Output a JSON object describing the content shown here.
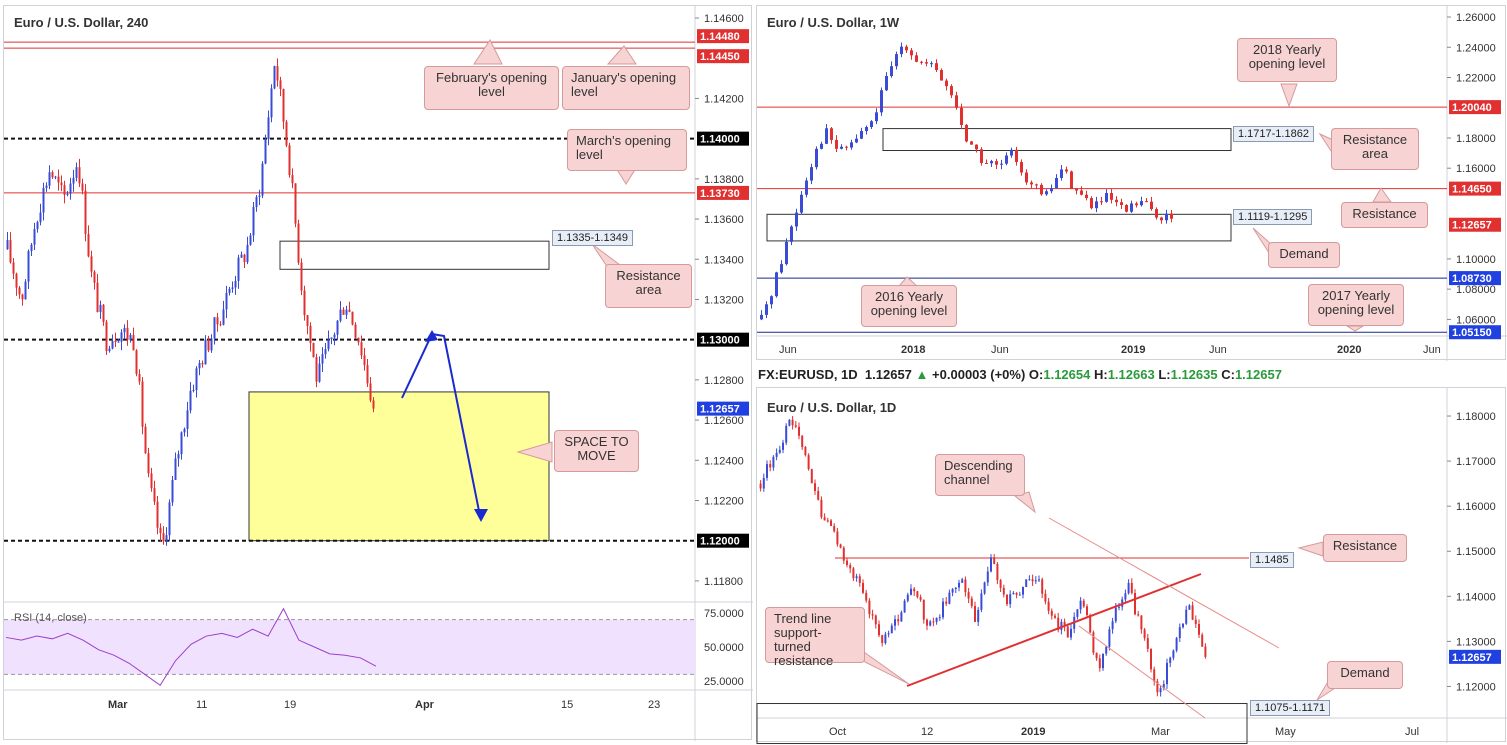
{
  "colors": {
    "up": "#3a4cd6",
    "down": "#e03030",
    "resistance_line": "#e03030",
    "support_tag": "#2040e0",
    "arrow": "#1a2ad0",
    "zone": "#ffff9a",
    "rsi_band": "#f0e2ff",
    "rsi_line": "#9b3fc9",
    "callout": "#f8d3d3"
  },
  "panel_4h": {
    "title": "Euro / U.S. Dollar, 240",
    "price_ticks": [
      "1.14600",
      "1.14200",
      "1.13800",
      "1.13600",
      "1.13400",
      "1.13200",
      "1.12800",
      "1.12600",
      "1.12400",
      "1.12200",
      "1.11800"
    ],
    "tags": [
      {
        "text": "1.14480",
        "color": "#e03030"
      },
      {
        "text": "1.14450",
        "color": "#e03030"
      },
      {
        "text": "1.14000",
        "color": "#000000"
      },
      {
        "text": "1.13730",
        "color": "#e03030"
      },
      {
        "text": "1.13000",
        "color": "#000000"
      },
      {
        "text": "1.12657",
        "color": "#2040e0"
      },
      {
        "text": "1.12000",
        "color": "#000000"
      }
    ],
    "zone_label": "1.1335-1.1349",
    "callouts": {
      "feb": "February's opening level",
      "jan": "January's opening level",
      "mar": "March's opening level",
      "res": "Resistance area",
      "space": "SPACE TO MOVE"
    },
    "x_ticks": [
      "Mar",
      "11",
      "19",
      "Apr",
      "15",
      "23"
    ],
    "rsi": {
      "label": "RSI (14, close)",
      "ticks": [
        "75.0000",
        "50.0000",
        "25.0000"
      ]
    }
  },
  "panel_w": {
    "title": "Euro / U.S. Dollar, 1W",
    "price_ticks": [
      "1.26000",
      "1.24000",
      "1.22000",
      "1.18000",
      "1.16000",
      "1.10000",
      "1.08000",
      "1.06000"
    ],
    "tags": [
      {
        "text": "1.20040",
        "color": "#e03030"
      },
      {
        "text": "1.14650",
        "color": "#e03030"
      },
      {
        "text": "1.12657",
        "color": "#e03030"
      },
      {
        "text": "1.08730",
        "color": "#2040e0"
      },
      {
        "text": "1.05150",
        "color": "#2040e0"
      }
    ],
    "box_labels": [
      "1.1717-1.1862",
      "1.1119-1.1295"
    ],
    "callouts": {
      "y2018": "2018 Yearly opening level",
      "res_area": "Resistance area",
      "res": "Resistance",
      "demand": "Demand",
      "y2016": "2016 Yearly opening level",
      "y2017": "2017 Yearly opening level"
    },
    "x_ticks": [
      "Jun",
      "2018",
      "Jun",
      "2019",
      "Jun",
      "2020",
      "Jun"
    ]
  },
  "ohlc": {
    "symbol": "FX:EURUSD, 1D",
    "last": "1.12657",
    "change": "+0.00003 (+0%)",
    "o_label": "O:",
    "o": "1.12654",
    "h_label": "H:",
    "h": "1.12663",
    "l_label": "L:",
    "l": "1.12635",
    "c_label": "C:",
    "c": "1.12657"
  },
  "panel_d": {
    "title": "Euro / U.S. Dollar, 1D",
    "price_ticks": [
      "1.18000",
      "1.17000",
      "1.16000",
      "1.15000",
      "1.14000",
      "1.13000",
      "1.12000"
    ],
    "tags": [
      {
        "text": "1.12657",
        "color": "#2040e0"
      }
    ],
    "box_labels": [
      "1.1485",
      "1.1075-1.1171"
    ],
    "callouts": {
      "desc": "Descending channel",
      "res": "Resistance",
      "trend": "Trend line support-turned resistance",
      "demand": "Demand"
    },
    "x_ticks": [
      "Oct",
      "12",
      "2019",
      "Mar",
      "May",
      "Jul"
    ]
  },
  "chart_data": [
    {
      "type": "candlestick",
      "title": "Euro / U.S. Dollar, 240",
      "ylim": [
        1.117,
        1.1462
      ],
      "levels": [
        {
          "value": 1.1448,
          "label": "February's opening level"
        },
        {
          "value": 1.1445,
          "label": "January's opening level"
        },
        {
          "value": 1.14
        },
        {
          "value": 1.1373,
          "label": "March's opening level"
        },
        {
          "value": 1.13
        },
        {
          "value": 1.12
        }
      ],
      "zones": [
        {
          "from": 1.1335,
          "to": 1.1349,
          "label": "Resistance area"
        },
        {
          "from": 1.12,
          "to": 1.1274,
          "label": "SPACE TO MOVE"
        }
      ],
      "last_price": 1.12657,
      "close_path": [
        1.1345,
        1.132,
        1.136,
        1.1385,
        1.137,
        1.139,
        1.133,
        1.13,
        1.1305,
        1.13,
        1.123,
        1.1195,
        1.124,
        1.1275,
        1.1295,
        1.131,
        1.133,
        1.1345,
        1.138,
        1.144,
        1.139,
        1.132,
        1.128,
        1.13,
        1.132,
        1.13,
        1.1266
      ],
      "rsi": {
        "ylim": [
          20,
          80
        ],
        "values": [
          57,
          55,
          58,
          56,
          60,
          55,
          48,
          44,
          38,
          30,
          22,
          40,
          52,
          58,
          60,
          57,
          63,
          58,
          78,
          55,
          50,
          45,
          44,
          42,
          36
        ]
      }
    },
    {
      "type": "candlestick",
      "title": "Euro / U.S. Dollar, 1W",
      "ylim": [
        1.049,
        1.262
      ],
      "levels": [
        {
          "value": 1.2004,
          "label": "2018 Yearly opening level"
        },
        {
          "value": 1.1465,
          "label": "Resistance"
        },
        {
          "value": 1.0873,
          "label": "2016 Yearly opening level"
        },
        {
          "value": 1.0515,
          "label": "2017 Yearly opening level"
        }
      ],
      "zones": [
        {
          "from": 1.1717,
          "to": 1.1862,
          "label": "Resistance area"
        },
        {
          "from": 1.1119,
          "to": 1.1295,
          "label": "Demand"
        }
      ],
      "last_price": 1.12657,
      "close_path": [
        1.06,
        1.09,
        1.125,
        1.16,
        1.185,
        1.17,
        1.18,
        1.19,
        1.22,
        1.245,
        1.23,
        1.225,
        1.21,
        1.18,
        1.165,
        1.16,
        1.17,
        1.15,
        1.14,
        1.16,
        1.145,
        1.135,
        1.14,
        1.13,
        1.138,
        1.13,
        1.1266
      ]
    },
    {
      "type": "candlestick",
      "title": "Euro / U.S. Dollar, 1D",
      "ylim": [
        1.113,
        1.184
      ],
      "levels": [
        {
          "value": 1.1485,
          "label": "Resistance"
        }
      ],
      "zones": [
        {
          "from": 1.1075,
          "to": 1.1171,
          "label": "Demand"
        }
      ],
      "trend_lines": [
        {
          "label": "Trend line support-turned resistance"
        },
        {
          "label": "Descending channel"
        }
      ],
      "last_price": 1.12657,
      "close_path": [
        1.165,
        1.172,
        1.179,
        1.17,
        1.158,
        1.152,
        1.145,
        1.138,
        1.13,
        1.135,
        1.142,
        1.133,
        1.138,
        1.144,
        1.135,
        1.148,
        1.139,
        1.142,
        1.145,
        1.135,
        1.132,
        1.14,
        1.124,
        1.135,
        1.142,
        1.13,
        1.118,
        1.13,
        1.138,
        1.1266
      ]
    }
  ]
}
